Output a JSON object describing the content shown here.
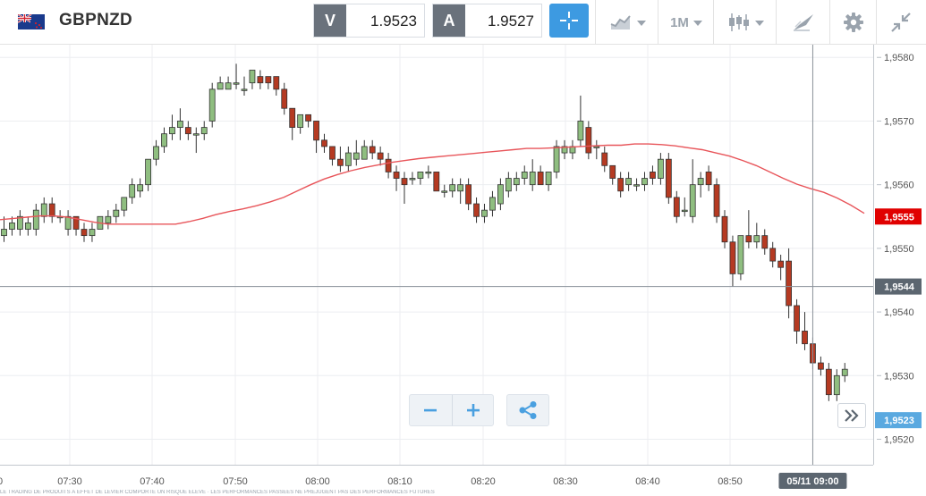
{
  "header": {
    "symbol": "GBPNZD",
    "sell_label": "V",
    "sell_price": "1.9523",
    "buy_label": "A",
    "buy_price": "1.9527",
    "timeframe": "1M"
  },
  "icons": {
    "flag": "uk-nz-flag-icon",
    "crosshair": "crosshair-icon",
    "chart_type": "line-chart-icon",
    "candles": "candlestick-icon",
    "draw": "drawing-tools-icon",
    "settings": "gear-icon",
    "collapse": "collapse-icon",
    "zoom_out": "minus-icon",
    "zoom_in": "plus-icon",
    "share": "share-icon",
    "scroll_latest": "double-chevron-right-icon"
  },
  "colors": {
    "bull": "#8fbe80",
    "bear": "#b53a22",
    "ma": "#e8555a",
    "accent": "#3d9ae1",
    "ma_label": "#e00000",
    "ask_label": "#5aa9e0",
    "crosshair_label": "#5c6670"
  },
  "chart_data": {
    "type": "candlestick",
    "y_range": [
      1.9516,
      1.9582
    ],
    "y_ticks": [
      "1,9580",
      "1,9570",
      "1,9560",
      "1,9550",
      "1,9540",
      "1,9530",
      "1,9520"
    ],
    "x_ticks": [
      "07:30",
      "07:40",
      "07:50",
      "08:00",
      "08:10",
      "08:20",
      "08:30",
      "08:40",
      "08:50"
    ],
    "x_edge_label": "0",
    "crosshair": {
      "price": 1.9544,
      "price_label": "1,9544",
      "time_label": "05/11 09:00"
    },
    "ma_label": {
      "price": 1.9555,
      "text": "1,9555"
    },
    "ask_label": {
      "price": 1.9523,
      "text": "1,9523"
    },
    "moving_average": [
      1.95545,
      1.95547,
      1.95549,
      1.95551,
      1.95551,
      1.95549,
      1.95545,
      1.95541,
      1.95538,
      1.95538,
      1.95538,
      1.95538,
      1.95538,
      1.95538,
      1.95542,
      1.95547,
      1.95553,
      1.95558,
      1.95562,
      1.95567,
      1.95573,
      1.9558,
      1.9559,
      1.956,
      1.95609,
      1.95616,
      1.95622,
      1.95627,
      1.95631,
      1.95635,
      1.95638,
      1.95641,
      1.95643,
      1.95645,
      1.95647,
      1.95649,
      1.95651,
      1.95653,
      1.95655,
      1.95657,
      1.95657,
      1.95658,
      1.95659,
      1.9566,
      1.95661,
      1.95662,
      1.95662,
      1.95664,
      1.95664,
      1.95663,
      1.95661,
      1.95658,
      1.95655,
      1.9565,
      1.95645,
      1.95638,
      1.9563,
      1.9562,
      1.9561,
      1.95601,
      1.95594,
      1.95588,
      1.95579,
      1.95568,
      1.95555
    ],
    "candles": [
      [
        1.9552,
        1.9553,
        1.9555,
        1.9551
      ],
      [
        1.9553,
        1.9554,
        1.9555,
        1.9552
      ],
      [
        1.9553,
        1.9555,
        1.9556,
        1.9552
      ],
      [
        1.9553,
        1.9554,
        1.9555,
        1.9552
      ],
      [
        1.9553,
        1.9556,
        1.9557,
        1.9552
      ],
      [
        1.9555,
        1.9557,
        1.9558,
        1.9554
      ],
      [
        1.9557,
        1.9555,
        1.9558,
        1.9554
      ],
      [
        1.9555,
        1.9555,
        1.9556,
        1.9554
      ],
      [
        1.9553,
        1.9555,
        1.9556,
        1.9552
      ],
      [
        1.9555,
        1.9553,
        1.9555,
        1.9552
      ],
      [
        1.9553,
        1.9552,
        1.9554,
        1.9551
      ],
      [
        1.9552,
        1.9553,
        1.9554,
        1.9551
      ],
      [
        1.9553,
        1.9555,
        1.9555,
        1.9553
      ],
      [
        1.9554,
        1.9555,
        1.9556,
        1.9553
      ],
      [
        1.9555,
        1.9556,
        1.9557,
        1.9554
      ],
      [
        1.9556,
        1.9558,
        1.9558,
        1.9555
      ],
      [
        1.9558,
        1.956,
        1.9561,
        1.9557
      ],
      [
        1.9559,
        1.956,
        1.9561,
        1.9558
      ],
      [
        1.956,
        1.9564,
        1.9564,
        1.9559
      ],
      [
        1.9564,
        1.9566,
        1.9567,
        1.9563
      ],
      [
        1.9566,
        1.9568,
        1.9569,
        1.9565
      ],
      [
        1.9568,
        1.9569,
        1.9571,
        1.9567
      ],
      [
        1.9569,
        1.957,
        1.9572,
        1.9567
      ],
      [
        1.9569,
        1.9568,
        1.957,
        1.9567
      ],
      [
        1.9568,
        1.9568,
        1.9569,
        1.9565
      ],
      [
        1.9568,
        1.9569,
        1.957,
        1.9567
      ],
      [
        1.957,
        1.9575,
        1.9576,
        1.9569
      ],
      [
        1.9575,
        1.9576,
        1.9577,
        1.9575
      ],
      [
        1.9575,
        1.9576,
        1.9577,
        1.9575
      ],
      [
        1.9576,
        1.9576,
        1.9579,
        1.9575
      ],
      [
        1.9575,
        1.9575,
        1.9577,
        1.9574
      ],
      [
        1.9576,
        1.9578,
        1.9578,
        1.9575
      ],
      [
        1.9577,
        1.9576,
        1.9578,
        1.9575
      ],
      [
        1.9577,
        1.9576,
        1.9577,
        1.9575
      ],
      [
        1.9577,
        1.9575,
        1.9577,
        1.9574
      ],
      [
        1.9575,
        1.9572,
        1.9576,
        1.9571
      ],
      [
        1.9572,
        1.9569,
        1.9572,
        1.9567
      ],
      [
        1.9569,
        1.9571,
        1.9571,
        1.9568
      ],
      [
        1.9571,
        1.957,
        1.9571,
        1.9569
      ],
      [
        1.957,
        1.9567,
        1.957,
        1.9565
      ],
      [
        1.9567,
        1.9566,
        1.9568,
        1.9565
      ],
      [
        1.9566,
        1.9564,
        1.9566,
        1.9563
      ],
      [
        1.9564,
        1.9563,
        1.9566,
        1.9562
      ],
      [
        1.9563,
        1.9565,
        1.9566,
        1.9562
      ],
      [
        1.9564,
        1.9565,
        1.9567,
        1.9563
      ],
      [
        1.9564,
        1.9566,
        1.9567,
        1.9565
      ],
      [
        1.9566,
        1.9565,
        1.9567,
        1.9564
      ],
      [
        1.9565,
        1.9564,
        1.9566,
        1.9563
      ],
      [
        1.9564,
        1.9562,
        1.9565,
        1.9561
      ],
      [
        1.9562,
        1.9561,
        1.9563,
        1.9559
      ],
      [
        1.9561,
        1.956,
        1.9562,
        1.9557
      ],
      [
        1.9561,
        1.9561,
        1.9562,
        1.956
      ],
      [
        1.9561,
        1.9562,
        1.9562,
        1.956
      ],
      [
        1.9562,
        1.9562,
        1.9563,
        1.9561
      ],
      [
        1.9562,
        1.9559,
        1.9562,
        1.9559
      ],
      [
        1.9559,
        1.9559,
        1.956,
        1.9558
      ],
      [
        1.9559,
        1.956,
        1.9561,
        1.9558
      ],
      [
        1.9559,
        1.956,
        1.9561,
        1.9557
      ],
      [
        1.956,
        1.9557,
        1.9561,
        1.9556
      ],
      [
        1.9557,
        1.9555,
        1.9558,
        1.9554
      ],
      [
        1.9555,
        1.9556,
        1.9557,
        1.9554
      ],
      [
        1.9556,
        1.9558,
        1.9559,
        1.9555
      ],
      [
        1.9557,
        1.956,
        1.9561,
        1.9556
      ],
      [
        1.9559,
        1.9561,
        1.9562,
        1.9558
      ],
      [
        1.956,
        1.9561,
        1.9562,
        1.9559
      ],
      [
        1.9561,
        1.9562,
        1.9563,
        1.956
      ],
      [
        1.956,
        1.9562,
        1.9564,
        1.9559
      ],
      [
        1.9562,
        1.956,
        1.9563,
        1.956
      ],
      [
        1.956,
        1.9562,
        1.9562,
        1.9559
      ],
      [
        1.9562,
        1.9566,
        1.9567,
        1.9561
      ],
      [
        1.9565,
        1.9566,
        1.9567,
        1.9564
      ],
      [
        1.9565,
        1.9566,
        1.9567,
        1.9564
      ],
      [
        1.9567,
        1.957,
        1.9574,
        1.9566
      ],
      [
        1.9569,
        1.9565,
        1.957,
        1.9564
      ],
      [
        1.9566,
        1.9566,
        1.9567,
        1.9564
      ],
      [
        1.9565,
        1.9563,
        1.9566,
        1.9562
      ],
      [
        1.9563,
        1.9561,
        1.9563,
        1.956
      ],
      [
        1.9561,
        1.9559,
        1.9562,
        1.9558
      ],
      [
        1.956,
        1.9561,
        1.9562,
        1.9559
      ],
      [
        1.956,
        1.956,
        1.9561,
        1.9559
      ],
      [
        1.956,
        1.9561,
        1.9562,
        1.9559
      ],
      [
        1.9562,
        1.9561,
        1.9563,
        1.956
      ],
      [
        1.9561,
        1.9564,
        1.9565,
        1.956
      ],
      [
        1.9564,
        1.9558,
        1.9565,
        1.9557
      ],
      [
        1.9558,
        1.9555,
        1.9559,
        1.9554
      ],
      [
        1.9556,
        1.9556,
        1.9558,
        1.9555
      ],
      [
        1.9555,
        1.956,
        1.9564,
        1.9554
      ],
      [
        1.956,
        1.9561,
        1.9562,
        1.9558
      ],
      [
        1.9562,
        1.956,
        1.9563,
        1.9559
      ],
      [
        1.956,
        1.9555,
        1.9561,
        1.9554
      ],
      [
        1.9555,
        1.9551,
        1.9556,
        1.955
      ],
      [
        1.9551,
        1.9546,
        1.9552,
        1.9544
      ],
      [
        1.9546,
        1.9552,
        1.9552,
        1.9545
      ],
      [
        1.9552,
        1.9551,
        1.9556,
        1.955
      ],
      [
        1.9551,
        1.9552,
        1.9554,
        1.955
      ],
      [
        1.9552,
        1.955,
        1.9553,
        1.9549
      ],
      [
        1.955,
        1.9548,
        1.9551,
        1.9547
      ],
      [
        1.9548,
        1.9547,
        1.9549,
        1.9545
      ],
      [
        1.9548,
        1.9541,
        1.955,
        1.9539
      ],
      [
        1.9541,
        1.9537,
        1.9542,
        1.9535
      ],
      [
        1.9537,
        1.9535,
        1.954,
        1.9534
      ],
      [
        1.9535,
        1.9532,
        1.9536,
        1.9531
      ],
      [
        1.9532,
        1.9531,
        1.9533,
        1.953
      ],
      [
        1.9531,
        1.9527,
        1.9532,
        1.9526
      ],
      [
        1.9527,
        1.953,
        1.9531,
        1.9526
      ],
      [
        1.953,
        1.9531,
        1.9532,
        1.9529
      ]
    ]
  },
  "footer": {
    "disclaimer": "LE TRADING DE PRODUITS À EFFET DE LEVIER COMPORTE UN RISQUE ÉLEVÉ · LES PERFORMANCES PASSÉES NE PRÉJUGENT PAS DES PERFORMANCES FUTURES"
  }
}
